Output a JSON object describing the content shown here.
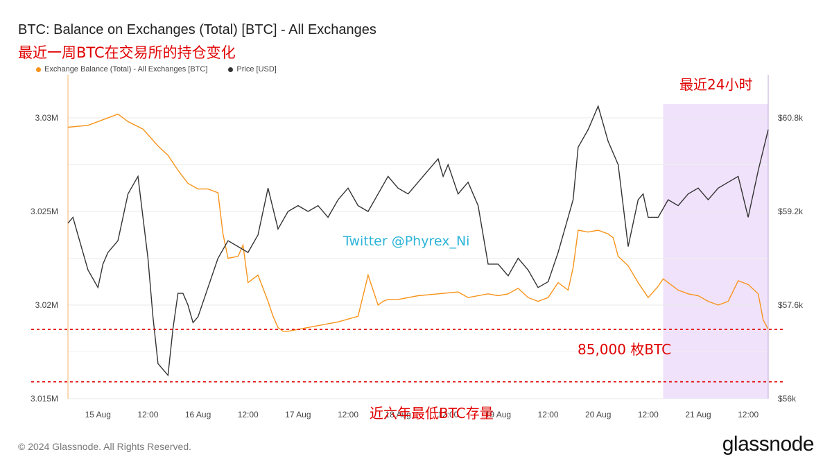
{
  "header": {
    "title": "BTC: Balance on Exchanges (Total) [BTC] - All Exchanges",
    "subtitle": "最近一周BTC在交易所的持仓变化"
  },
  "footer": {
    "copyright": "© 2024 Glassnode. All Rights Reserved.",
    "brand": "glassnode"
  },
  "annotations": {
    "last24h": "最近24小时",
    "twitter": "Twitter @Phyrex_Ni",
    "gap": "85,000 枚BTC",
    "lowest": "近六年最低BTC存量"
  },
  "colors": {
    "balance": "#f7931a",
    "price": "#333333",
    "highlight": "#f0e2fb",
    "annotation": "#e00000"
  },
  "chart_data": {
    "type": "line",
    "title": "BTC: Balance on Exchanges (Total) [BTC] - All Exchanges",
    "x_tick_labels": [
      "15 Aug",
      "12:00",
      "16 Aug",
      "12:00",
      "17 Aug",
      "12:00",
      "18 Aug",
      "12:00",
      "19 Aug",
      "12:00",
      "20 Aug",
      "12:00",
      "21 Aug",
      "12:00"
    ],
    "y_left_tick_labels": [
      "3.015M",
      "3.02M",
      "3.025M",
      "3.03M"
    ],
    "y_left_range": [
      3015000,
      3030000
    ],
    "y_right_tick_labels": [
      "$56k",
      "$57.6k",
      "$59.2k",
      "$60.8k"
    ],
    "y_right_range": [
      56000,
      60800
    ],
    "legend": [
      "Exchange Balance (Total) - All Exchanges [BTC]",
      "Price [USD]"
    ],
    "legend_position": "top-left",
    "x_range": [
      0,
      7
    ],
    "series": [
      {
        "name": "Exchange Balance (Total) - All Exchanges [BTC]",
        "axis": "left",
        "x": [
          0.0,
          0.2,
          0.35,
          0.5,
          0.6,
          0.75,
          0.9,
          1.0,
          1.1,
          1.2,
          1.3,
          1.4,
          1.5,
          1.55,
          1.6,
          1.7,
          1.75,
          1.8,
          1.9,
          2.0,
          2.05,
          2.1,
          2.15,
          2.2,
          2.3,
          2.5,
          2.7,
          2.9,
          3.0,
          3.1,
          3.15,
          3.2,
          3.3,
          3.5,
          3.7,
          3.9,
          4.0,
          4.2,
          4.3,
          4.4,
          4.5,
          4.6,
          4.7,
          4.8,
          4.9,
          5.0,
          5.05,
          5.1,
          5.2,
          5.3,
          5.4,
          5.45,
          5.5,
          5.6,
          5.7,
          5.8,
          5.9,
          5.95,
          6.0,
          6.1,
          6.2,
          6.3,
          6.4,
          6.5,
          6.6,
          6.7,
          6.8,
          6.9,
          6.95,
          7.0
        ],
        "y": [
          3029500,
          3029600,
          3029900,
          3030200,
          3029800,
          3029400,
          3028500,
          3028000,
          3027200,
          3026500,
          3026200,
          3026200,
          3026000,
          3023800,
          3022500,
          3022600,
          3023200,
          3021200,
          3021600,
          3020200,
          3019400,
          3018800,
          3018600,
          3018600,
          3018700,
          3018900,
          3019100,
          3019400,
          3021600,
          3020000,
          3020200,
          3020300,
          3020300,
          3020500,
          3020600,
          3020700,
          3020400,
          3020600,
          3020500,
          3020600,
          3020900,
          3020400,
          3020200,
          3020400,
          3021200,
          3020800,
          3022000,
          3024000,
          3023900,
          3024000,
          3023800,
          3023600,
          3022600,
          3022100,
          3021200,
          3020400,
          3021000,
          3021400,
          3021200,
          3020800,
          3020600,
          3020500,
          3020200,
          3020000,
          3020200,
          3021300,
          3021100,
          3020600,
          3019200,
          3018700
        ]
      },
      {
        "name": "Price [USD]",
        "axis": "right",
        "x": [
          0.0,
          0.05,
          0.1,
          0.2,
          0.3,
          0.35,
          0.4,
          0.5,
          0.6,
          0.7,
          0.8,
          0.85,
          0.9,
          1.0,
          1.05,
          1.1,
          1.15,
          1.2,
          1.25,
          1.3,
          1.4,
          1.5,
          1.6,
          1.7,
          1.8,
          1.9,
          2.0,
          2.1,
          2.2,
          2.3,
          2.4,
          2.5,
          2.6,
          2.7,
          2.8,
          2.9,
          3.0,
          3.1,
          3.2,
          3.3,
          3.4,
          3.5,
          3.6,
          3.7,
          3.75,
          3.8,
          3.9,
          4.0,
          4.1,
          4.2,
          4.3,
          4.4,
          4.5,
          4.6,
          4.7,
          4.8,
          4.9,
          5.0,
          5.05,
          5.1,
          5.2,
          5.3,
          5.35,
          5.4,
          5.5,
          5.6,
          5.7,
          5.75,
          5.8,
          5.9,
          6.0,
          6.1,
          6.2,
          6.3,
          6.4,
          6.5,
          6.6,
          6.7,
          6.8,
          6.9,
          7.0
        ],
        "y": [
          59000,
          59100,
          58800,
          58200,
          57900,
          58300,
          58500,
          58700,
          59500,
          59800,
          58400,
          57400,
          56600,
          56400,
          57200,
          57800,
          57800,
          57600,
          57300,
          57400,
          57900,
          58400,
          58700,
          58600,
          58500,
          58800,
          59600,
          58900,
          59200,
          59300,
          59200,
          59300,
          59100,
          59400,
          59600,
          59300,
          59200,
          59500,
          59800,
          59600,
          59500,
          59700,
          59900,
          60100,
          59800,
          60000,
          59500,
          59700,
          59300,
          58300,
          58300,
          58100,
          58400,
          58200,
          57900,
          58000,
          58500,
          59100,
          59400,
          60300,
          60600,
          61000,
          60700,
          60400,
          60000,
          58600,
          59400,
          59500,
          59100,
          59100,
          59400,
          59300,
          59500,
          59600,
          59400,
          59600,
          59700,
          59800,
          59100,
          59900,
          60600
        ]
      }
    ],
    "highlight_x_range": [
      5.95,
      7.0
    ],
    "reference_lines": [
      3018700,
      3015900
    ]
  }
}
